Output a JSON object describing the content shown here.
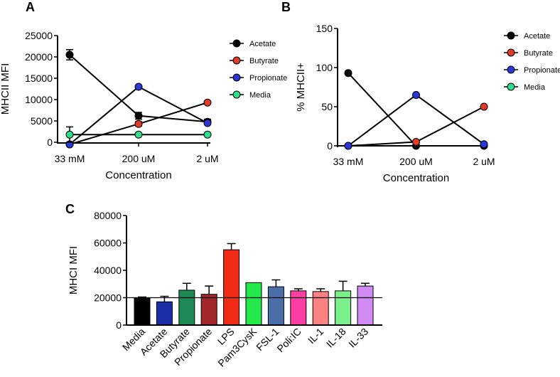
{
  "colors": {
    "Acetate": "#000000",
    "Butyrate": "#e23b2a",
    "Propionate": "#2a36d6",
    "Media": "#2ee08c"
  },
  "chart_data": [
    {
      "panel": "A",
      "type": "line",
      "ylabel": "MHCII MFI",
      "xlabel": "Concentration",
      "categories": [
        "33 mM",
        "200 uM",
        "2 uM"
      ],
      "ylim": [
        0,
        25000
      ],
      "yticks": [
        0,
        5000,
        10000,
        15000,
        20000,
        25000
      ],
      "ytick_labels": [
        "0",
        "5000",
        "10000",
        "15000",
        "20000",
        "25000"
      ],
      "legend_position": "right",
      "series": [
        {
          "name": "Acetate",
          "values": [
            20500,
            6200,
            4800
          ],
          "errors": [
            1200,
            800,
            600
          ]
        },
        {
          "name": "Butyrate",
          "values": [
            -500,
            4300,
            9300
          ],
          "errors": [
            0,
            500,
            0
          ]
        },
        {
          "name": "Propionate",
          "values": [
            -500,
            13000,
            4500
          ],
          "errors": [
            0,
            0,
            0
          ]
        },
        {
          "name": "Media",
          "values": [
            1800,
            1800,
            1800
          ],
          "errors": [
            1800,
            0,
            0
          ]
        }
      ]
    },
    {
      "panel": "B",
      "type": "line",
      "ylabel": "% MHCII+",
      "xlabel": "Concentration",
      "categories": [
        "33 mM",
        "200 uM",
        "2 uM"
      ],
      "ylim": [
        0,
        150
      ],
      "yticks": [
        0,
        50,
        100,
        150
      ],
      "ytick_labels": [
        "0",
        "50",
        "100",
        "150"
      ],
      "legend_position": "right",
      "series": [
        {
          "name": "Acetate",
          "values": [
            93,
            0,
            0
          ]
        },
        {
          "name": "Butyrate",
          "values": [
            0,
            5,
            50
          ]
        },
        {
          "name": "Propionate",
          "values": [
            0,
            65,
            2
          ]
        },
        {
          "name": "Media",
          "values": [
            null,
            null,
            null
          ]
        }
      ]
    },
    {
      "panel": "C",
      "type": "bar",
      "ylabel": "MHCI MFI",
      "xlabel": "",
      "ylim": [
        0,
        80000
      ],
      "yticks": [
        0,
        20000,
        40000,
        60000,
        80000
      ],
      "ytick_labels": [
        "0",
        "20000",
        "40000",
        "60000",
        "80000"
      ],
      "reference_line": 20000,
      "categories": [
        "Media",
        "Acetate",
        "Butyrate",
        "Propionate",
        "LPS",
        "Pam3CysK",
        "FSL-1",
        "Poli:IC",
        "IL-1",
        "IL-18",
        "IL-33"
      ],
      "values": [
        19500,
        17000,
        25500,
        22500,
        55000,
        31000,
        28000,
        25000,
        24500,
        25000,
        28500
      ],
      "errors": [
        1000,
        4000,
        5000,
        6000,
        4500,
        0,
        5000,
        1500,
        2000,
        7000,
        2000
      ],
      "colors": [
        "#000000",
        "#1a2ea6",
        "#1d8a55",
        "#a2282a",
        "#f02a14",
        "#22e84a",
        "#4a6fa8",
        "#ff3ea5",
        "#ff8282",
        "#7af08a",
        "#d28af5"
      ]
    }
  ]
}
